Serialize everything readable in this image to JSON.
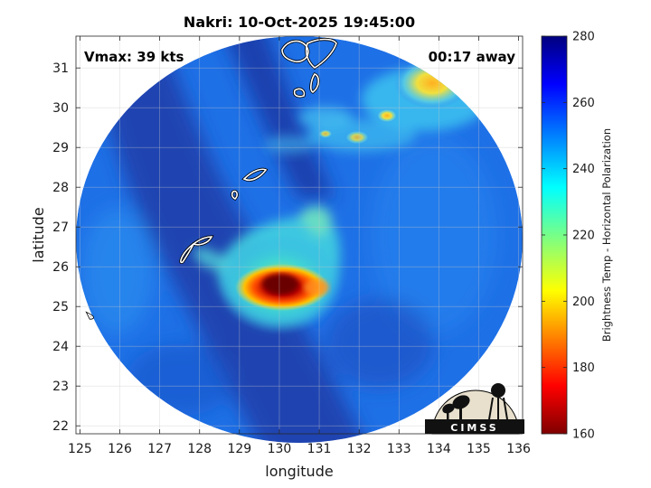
{
  "title": "Nakri: 10-Oct-2025 19:45:00",
  "vmax_label": "Vmax: 39 kts",
  "time_away_label": "00:17 away",
  "logo": {
    "text": "CIMSS"
  },
  "chart_data": {
    "type": "heatmap",
    "title": "Nakri: 10-Oct-2025 19:45:00",
    "xlabel": "longitude",
    "ylabel": "latitude",
    "xlim": [
      124.9,
      136.1
    ],
    "ylim": [
      21.8,
      31.8
    ],
    "x_ticks": [
      125,
      126,
      127,
      128,
      129,
      130,
      131,
      132,
      133,
      134,
      135,
      136
    ],
    "y_ticks": [
      22,
      23,
      24,
      25,
      26,
      27,
      28,
      29,
      30,
      31
    ],
    "grid": true,
    "storm_center": {
      "lon": 130.1,
      "lat": 25.6
    },
    "colorbar": {
      "label": "Brightness Temp - Horizontal Polarization",
      "min": 160,
      "max": 280,
      "ticks": [
        160,
        180,
        200,
        220,
        240,
        260,
        280
      ],
      "colormap": "jet"
    }
  },
  "colors": {
    "dark_blue": "#1a3fa8",
    "mid_blue": "#1f78e8",
    "cyan": "#3cc4f0",
    "yellow": "#f0e020",
    "red": "#c80000",
    "dark_red": "#7a0000"
  }
}
